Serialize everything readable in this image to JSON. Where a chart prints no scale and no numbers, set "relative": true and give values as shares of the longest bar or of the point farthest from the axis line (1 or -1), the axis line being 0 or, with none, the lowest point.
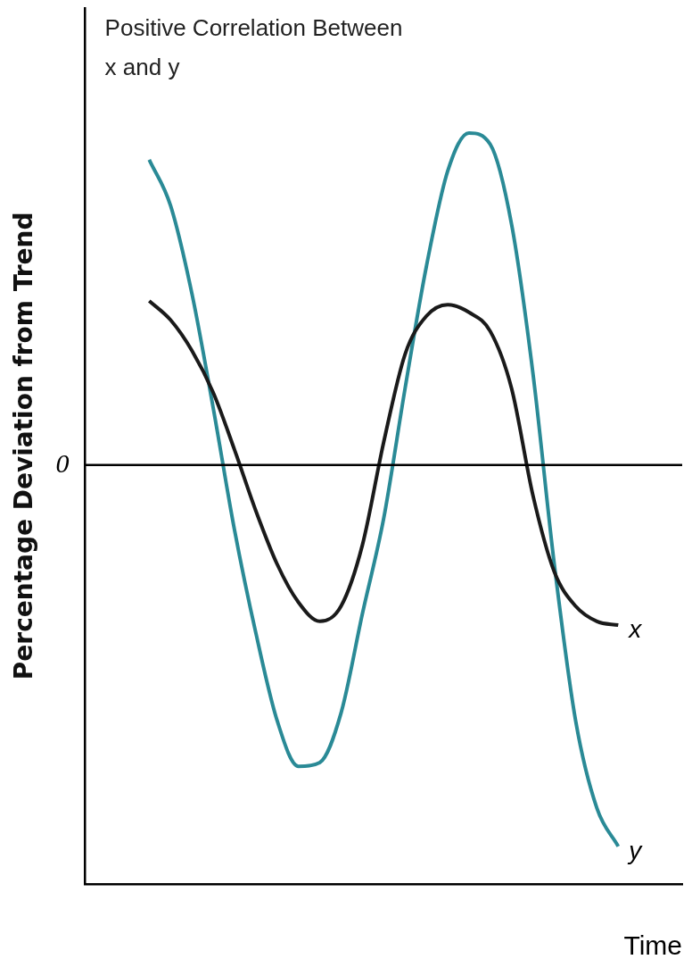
{
  "chart_data": {
    "type": "line",
    "title": "Positive Correlation Between x and y",
    "xlabel": "Time",
    "ylabel": "Percentage Deviation from Trend",
    "relative": true,
    "grid": false,
    "legend": false,
    "marker": "none",
    "categories": [
      null,
      null,
      null,
      null,
      null,
      null,
      null,
      null,
      null,
      null,
      null,
      null,
      null,
      null,
      null,
      null,
      null,
      null,
      null,
      null,
      null,
      null,
      null,
      null,
      null,
      null,
      null,
      null,
      null
    ],
    "series": [
      {
        "name": "x",
        "color": "#1a1a1a",
        "values": [
          null,
          null,
          null,
          0.43,
          0.38,
          0.3,
          0.19,
          0.04,
          -0.12,
          -0.26,
          -0.36,
          -0.41,
          -0.37,
          -0.21,
          0.06,
          0.29,
          0.39,
          0.42,
          0.4,
          0.35,
          0.2,
          -0.08,
          -0.28,
          -0.37,
          -0.41,
          -0.42,
          null,
          null,
          null
        ]
      },
      {
        "name": "y",
        "color": "#2a8a96",
        "values": [
          null,
          null,
          null,
          0.8,
          0.68,
          0.45,
          0.15,
          -0.17,
          -0.44,
          -0.67,
          -0.79,
          -0.78,
          -0.65,
          -0.39,
          -0.14,
          0.2,
          0.52,
          0.77,
          0.87,
          0.84,
          0.63,
          0.24,
          -0.26,
          -0.67,
          -0.9,
          -1,
          null,
          null,
          null
        ]
      }
    ],
    "ref_lines": [
      {
        "axis": "y",
        "value": 0,
        "label": "0"
      }
    ]
  }
}
